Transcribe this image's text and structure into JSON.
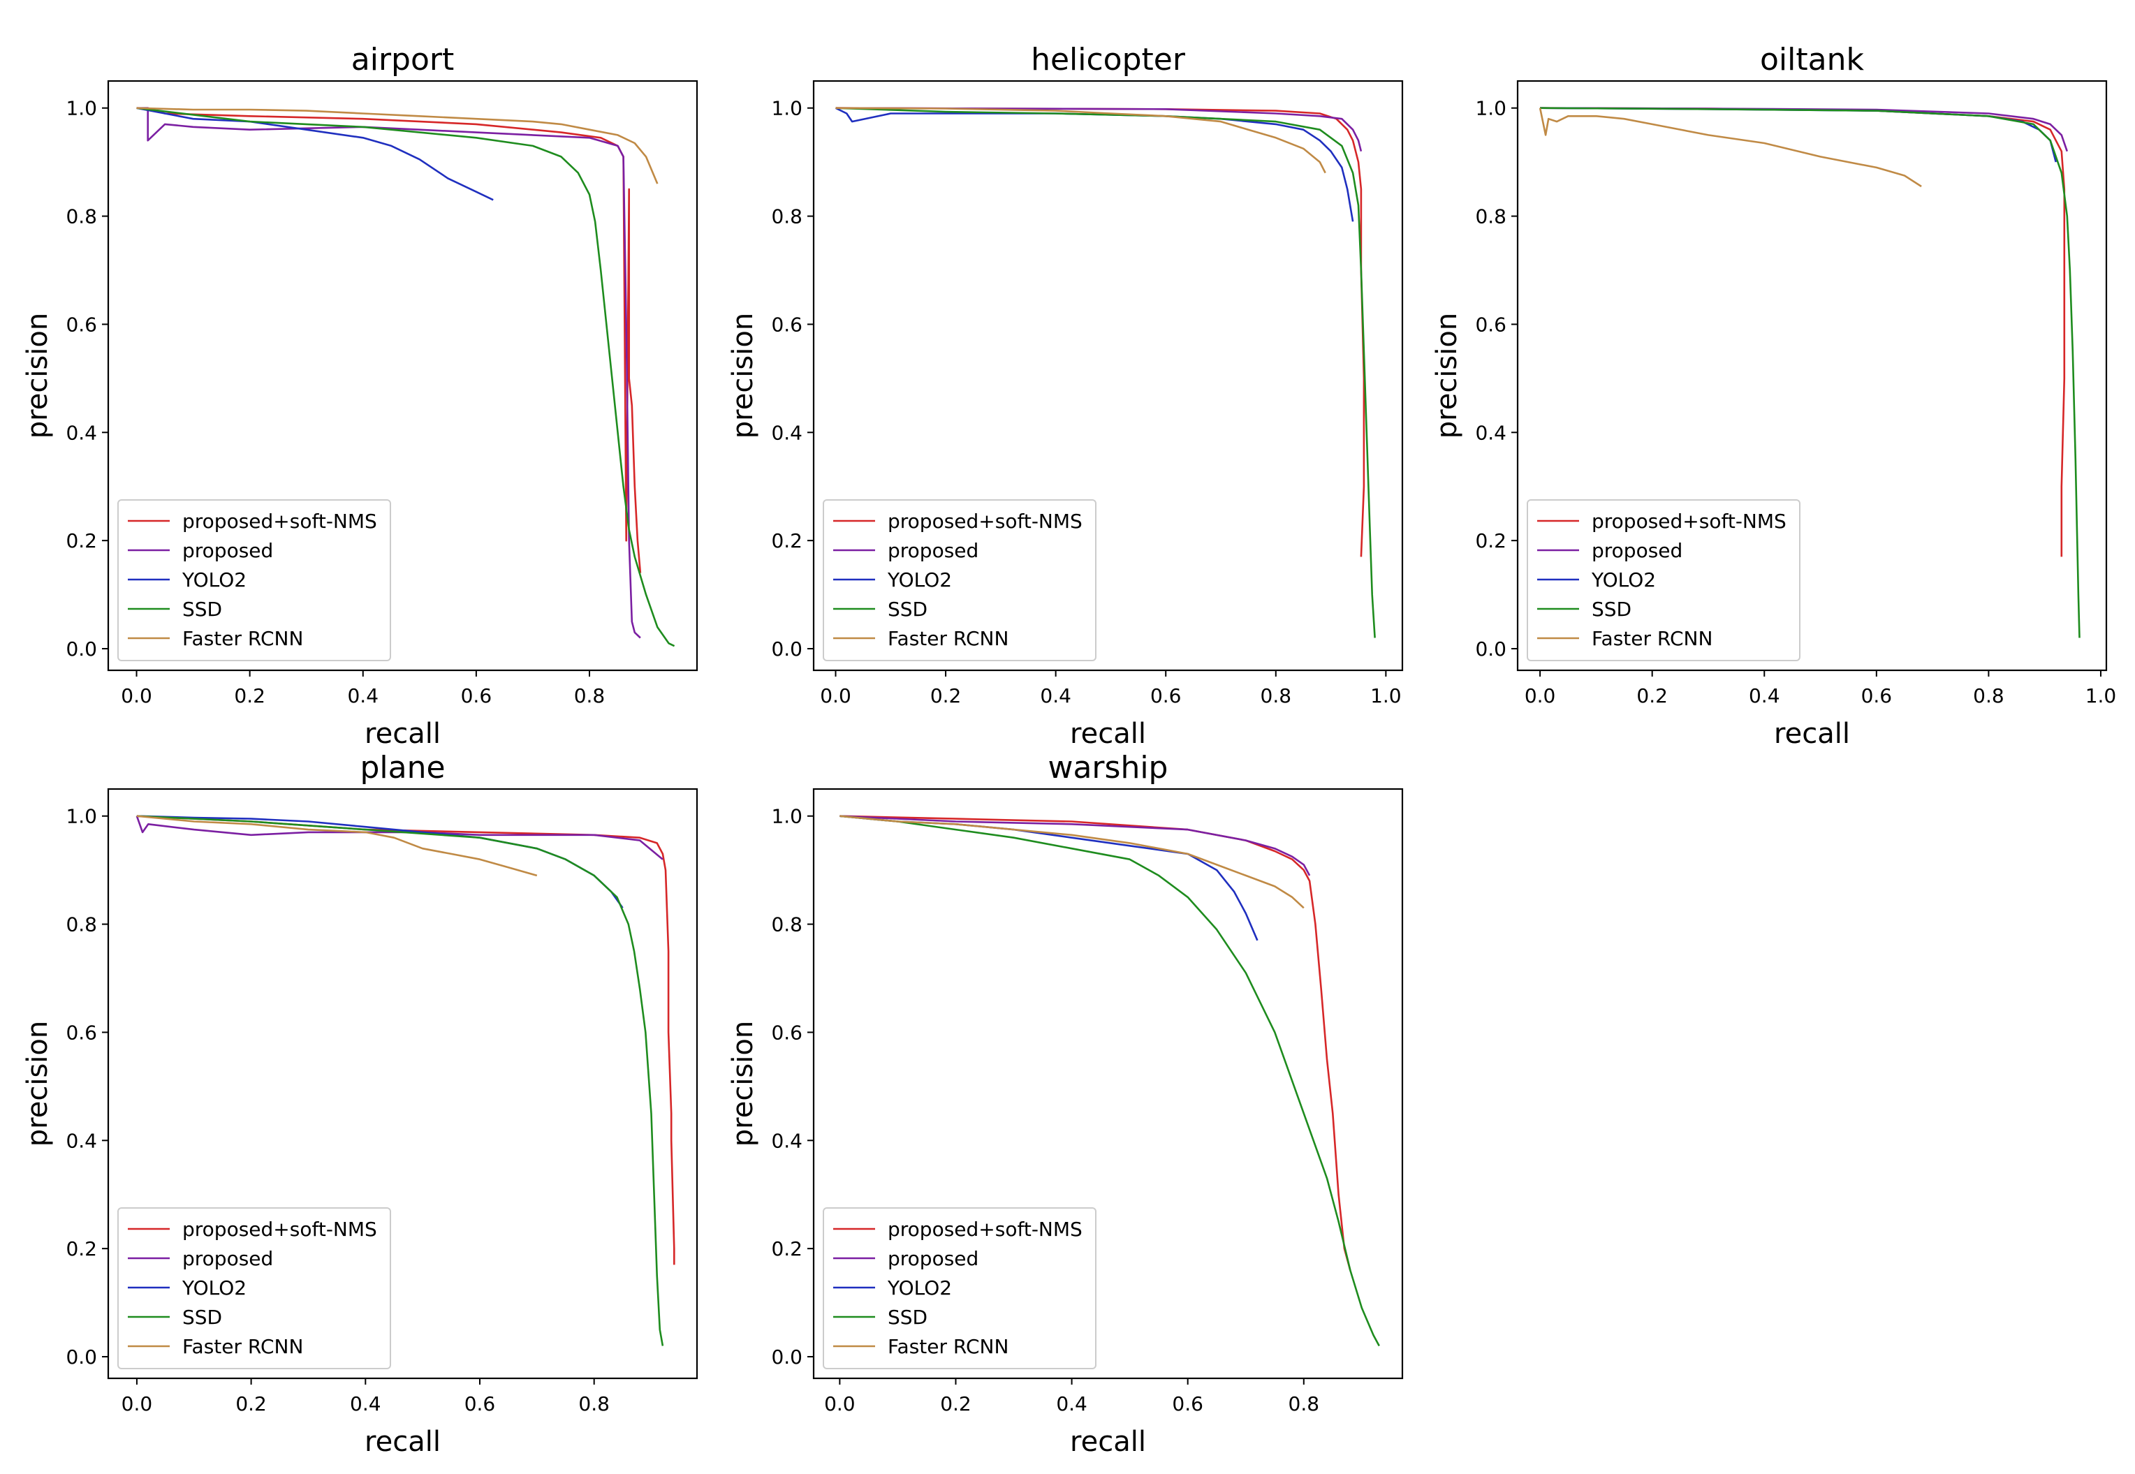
{
  "chart_data": [
    {
      "type": "line",
      "title": "airport",
      "xlabel": "recall",
      "ylabel": "precision",
      "xlim": [
        -0.05,
        0.99
      ],
      "ylim": [
        -0.04,
        1.05
      ],
      "xticks": [
        "0.0",
        "0.2",
        "0.4",
        "0.6",
        "0.8"
      ],
      "xtick_values": [
        0,
        0.2,
        0.4,
        0.6,
        0.8
      ],
      "yticks": [
        "0.0",
        "0.2",
        "0.4",
        "0.6",
        "0.8",
        "1.0"
      ],
      "ytick_values": [
        0,
        0.2,
        0.4,
        0.6,
        0.8,
        1.0
      ],
      "legend_position": "lower-left",
      "series": [
        {
          "name": "proposed+soft-NMS",
          "color": "#d62728",
          "x": [
            0.02,
            0.05,
            0.2,
            0.4,
            0.6,
            0.75,
            0.82,
            0.85,
            0.86,
            0.865,
            0.87,
            0.87,
            0.875,
            0.88,
            0.885,
            0.89
          ],
          "y": [
            1.0,
            0.99,
            0.985,
            0.98,
            0.97,
            0.955,
            0.945,
            0.93,
            0.91,
            0.2,
            0.85,
            0.5,
            0.45,
            0.3,
            0.2,
            0.14
          ]
        },
        {
          "name": "proposed",
          "color": "#7b1fa2",
          "x": [
            0.0,
            0.02,
            0.02,
            0.05,
            0.1,
            0.2,
            0.4,
            0.6,
            0.8,
            0.85,
            0.86,
            0.865,
            0.87,
            0.875,
            0.88,
            0.89
          ],
          "y": [
            1.0,
            1.0,
            0.94,
            0.97,
            0.965,
            0.96,
            0.965,
            0.955,
            0.945,
            0.93,
            0.91,
            0.6,
            0.2,
            0.05,
            0.03,
            0.02
          ]
        },
        {
          "name": "YOLO2",
          "color": "#1f2fbf",
          "x": [
            0.0,
            0.05,
            0.1,
            0.2,
            0.3,
            0.4,
            0.45,
            0.5,
            0.55,
            0.6,
            0.63
          ],
          "y": [
            1.0,
            0.99,
            0.98,
            0.975,
            0.96,
            0.945,
            0.93,
            0.905,
            0.87,
            0.845,
            0.83
          ]
        },
        {
          "name": "SSD",
          "color": "#1e8c1e",
          "x": [
            0.0,
            0.2,
            0.4,
            0.6,
            0.7,
            0.75,
            0.78,
            0.8,
            0.81,
            0.82,
            0.83,
            0.84,
            0.85,
            0.86,
            0.87,
            0.88,
            0.9,
            0.92,
            0.94,
            0.95
          ],
          "y": [
            1.0,
            0.975,
            0.965,
            0.945,
            0.93,
            0.91,
            0.88,
            0.84,
            0.79,
            0.7,
            0.6,
            0.5,
            0.4,
            0.3,
            0.22,
            0.17,
            0.1,
            0.04,
            0.01,
            0.005
          ]
        },
        {
          "name": "Faster RCNN",
          "color": "#c08a45",
          "x": [
            0.0,
            0.1,
            0.2,
            0.3,
            0.4,
            0.5,
            0.6,
            0.7,
            0.75,
            0.8,
            0.85,
            0.88,
            0.9,
            0.92
          ],
          "y": [
            1.0,
            0.997,
            0.997,
            0.995,
            0.99,
            0.985,
            0.98,
            0.975,
            0.97,
            0.96,
            0.95,
            0.935,
            0.91,
            0.86
          ]
        }
      ]
    },
    {
      "type": "line",
      "title": "helicopter",
      "xlabel": "recall",
      "ylabel": "precision",
      "xlim": [
        -0.04,
        1.03
      ],
      "ylim": [
        -0.04,
        1.05
      ],
      "xticks": [
        "0.0",
        "0.2",
        "0.4",
        "0.6",
        "0.8",
        "1.0"
      ],
      "xtick_values": [
        0,
        0.2,
        0.4,
        0.6,
        0.8,
        1.0
      ],
      "yticks": [
        "0.0",
        "0.2",
        "0.4",
        "0.6",
        "0.8",
        "1.0"
      ],
      "ytick_values": [
        0,
        0.2,
        0.4,
        0.6,
        0.8,
        1.0
      ],
      "legend_position": "lower-left",
      "series": [
        {
          "name": "proposed+soft-NMS",
          "color": "#d62728",
          "x": [
            0.0,
            0.3,
            0.6,
            0.8,
            0.88,
            0.91,
            0.93,
            0.94,
            0.95,
            0.955,
            0.955,
            0.96,
            0.96,
            0.955
          ],
          "y": [
            1.0,
            0.999,
            0.998,
            0.995,
            0.99,
            0.98,
            0.96,
            0.94,
            0.9,
            0.85,
            0.7,
            0.5,
            0.3,
            0.17
          ]
        },
        {
          "name": "proposed",
          "color": "#7b1fa2",
          "x": [
            0.0,
            0.3,
            0.6,
            0.8,
            0.88,
            0.92,
            0.94,
            0.95,
            0.955
          ],
          "y": [
            1.0,
            0.999,
            0.998,
            0.99,
            0.985,
            0.98,
            0.96,
            0.94,
            0.92
          ]
        },
        {
          "name": "YOLO2",
          "color": "#1f2fbf",
          "x": [
            0.0,
            0.02,
            0.03,
            0.1,
            0.2,
            0.4,
            0.6,
            0.7,
            0.8,
            0.85,
            0.88,
            0.9,
            0.92,
            0.93,
            0.94
          ],
          "y": [
            1.0,
            0.99,
            0.975,
            0.99,
            0.99,
            0.99,
            0.985,
            0.98,
            0.97,
            0.96,
            0.94,
            0.92,
            0.89,
            0.85,
            0.79
          ]
        },
        {
          "name": "SSD",
          "color": "#1e8c1e",
          "x": [
            0.0,
            0.2,
            0.4,
            0.6,
            0.8,
            0.88,
            0.92,
            0.94,
            0.95,
            0.955,
            0.96,
            0.965,
            0.97,
            0.975,
            0.98
          ],
          "y": [
            1.0,
            0.993,
            0.99,
            0.985,
            0.975,
            0.96,
            0.93,
            0.88,
            0.82,
            0.7,
            0.55,
            0.4,
            0.25,
            0.1,
            0.02
          ]
        },
        {
          "name": "Faster RCNN",
          "color": "#c08a45",
          "x": [
            0.0,
            0.2,
            0.4,
            0.5,
            0.6,
            0.7,
            0.75,
            0.8,
            0.85,
            0.88,
            0.89
          ],
          "y": [
            1.0,
            0.999,
            0.995,
            0.99,
            0.985,
            0.975,
            0.96,
            0.945,
            0.925,
            0.9,
            0.88
          ]
        }
      ]
    },
    {
      "type": "line",
      "title": "oiltank",
      "xlabel": "recall",
      "ylabel": "precision",
      "xlim": [
        -0.04,
        1.01
      ],
      "ylim": [
        -0.04,
        1.05
      ],
      "xticks": [
        "0.0",
        "0.2",
        "0.4",
        "0.6",
        "0.8",
        "1.0"
      ],
      "xtick_values": [
        0,
        0.2,
        0.4,
        0.6,
        0.8,
        1.0
      ],
      "yticks": [
        "0.0",
        "0.2",
        "0.4",
        "0.6",
        "0.8",
        "1.0"
      ],
      "ytick_values": [
        0,
        0.2,
        0.4,
        0.6,
        0.8,
        1.0
      ],
      "legend_position": "lower-left",
      "series": [
        {
          "name": "proposed+soft-NMS",
          "color": "#d62728",
          "x": [
            0.0,
            0.3,
            0.6,
            0.8,
            0.88,
            0.91,
            0.92,
            0.93,
            0.935,
            0.935,
            0.93,
            0.93
          ],
          "y": [
            1.0,
            0.999,
            0.995,
            0.985,
            0.975,
            0.96,
            0.94,
            0.92,
            0.85,
            0.5,
            0.3,
            0.17
          ]
        },
        {
          "name": "proposed",
          "color": "#7b1fa2",
          "x": [
            0.0,
            0.3,
            0.6,
            0.8,
            0.88,
            0.91,
            0.93,
            0.94
          ],
          "y": [
            1.0,
            0.999,
            0.997,
            0.99,
            0.98,
            0.97,
            0.95,
            0.92
          ]
        },
        {
          "name": "YOLO2",
          "color": "#1f2fbf",
          "x": [
            0.0,
            0.3,
            0.6,
            0.8,
            0.86,
            0.89,
            0.91,
            0.92
          ],
          "y": [
            1.0,
            0.998,
            0.995,
            0.985,
            0.975,
            0.96,
            0.94,
            0.9
          ]
        },
        {
          "name": "SSD",
          "color": "#1e8c1e",
          "x": [
            0.0,
            0.3,
            0.6,
            0.8,
            0.88,
            0.91,
            0.93,
            0.94,
            0.945,
            0.95,
            0.955,
            0.96,
            0.962
          ],
          "y": [
            1.0,
            0.998,
            0.995,
            0.985,
            0.97,
            0.94,
            0.88,
            0.8,
            0.7,
            0.55,
            0.35,
            0.1,
            0.02
          ]
        },
        {
          "name": "Faster RCNN",
          "color": "#c08a45",
          "x": [
            0.0,
            0.01,
            0.015,
            0.03,
            0.05,
            0.1,
            0.15,
            0.2,
            0.3,
            0.4,
            0.5,
            0.6,
            0.65,
            0.68
          ],
          "y": [
            1.0,
            0.95,
            0.98,
            0.975,
            0.985,
            0.985,
            0.98,
            0.97,
            0.95,
            0.935,
            0.91,
            0.89,
            0.875,
            0.855
          ]
        }
      ]
    },
    {
      "type": "line",
      "title": "plane",
      "xlabel": "recall",
      "ylabel": "precision",
      "xlim": [
        -0.05,
        0.98
      ],
      "ylim": [
        -0.04,
        1.05
      ],
      "xticks": [
        "0.0",
        "0.2",
        "0.4",
        "0.6",
        "0.8"
      ],
      "xtick_values": [
        0,
        0.2,
        0.4,
        0.6,
        0.8
      ],
      "yticks": [
        "0.0",
        "0.2",
        "0.4",
        "0.6",
        "0.8",
        "1.0"
      ],
      "ytick_values": [
        0,
        0.2,
        0.4,
        0.6,
        0.8,
        1.0
      ],
      "legend_position": "lower-left",
      "series": [
        {
          "name": "proposed+soft-NMS",
          "color": "#d62728",
          "x": [
            0.0,
            0.2,
            0.4,
            0.6,
            0.8,
            0.88,
            0.91,
            0.92,
            0.925,
            0.93,
            0.93,
            0.935,
            0.935,
            0.94,
            0.94
          ],
          "y": [
            1.0,
            0.99,
            0.975,
            0.97,
            0.965,
            0.96,
            0.95,
            0.93,
            0.9,
            0.75,
            0.6,
            0.45,
            0.4,
            0.2,
            0.17
          ]
        },
        {
          "name": "proposed",
          "color": "#7b1fa2",
          "x": [
            0.0,
            0.01,
            0.02,
            0.1,
            0.2,
            0.3,
            0.5,
            0.6,
            0.8,
            0.88,
            0.92
          ],
          "y": [
            1.0,
            0.97,
            0.985,
            0.975,
            0.965,
            0.97,
            0.97,
            0.965,
            0.965,
            0.955,
            0.92
          ]
        },
        {
          "name": "YOLO2",
          "color": "#1f2fbf",
          "x": [
            0.0,
            0.1,
            0.2,
            0.3,
            0.4,
            0.5,
            0.6,
            0.7,
            0.75,
            0.8,
            0.83,
            0.85
          ],
          "y": [
            1.0,
            0.997,
            0.995,
            0.99,
            0.98,
            0.97,
            0.96,
            0.94,
            0.92,
            0.89,
            0.86,
            0.83
          ]
        },
        {
          "name": "SSD",
          "color": "#1e8c1e",
          "x": [
            0.0,
            0.2,
            0.4,
            0.6,
            0.7,
            0.75,
            0.8,
            0.84,
            0.86,
            0.87,
            0.88,
            0.89,
            0.9,
            0.905,
            0.91,
            0.915,
            0.92
          ],
          "y": [
            1.0,
            0.99,
            0.975,
            0.96,
            0.94,
            0.92,
            0.89,
            0.85,
            0.8,
            0.75,
            0.68,
            0.6,
            0.45,
            0.3,
            0.15,
            0.05,
            0.02
          ]
        },
        {
          "name": "Faster RCNN",
          "color": "#c08a45",
          "x": [
            0.0,
            0.1,
            0.2,
            0.3,
            0.4,
            0.45,
            0.5,
            0.55,
            0.6,
            0.65,
            0.7
          ],
          "y": [
            1.0,
            0.99,
            0.985,
            0.975,
            0.97,
            0.96,
            0.94,
            0.93,
            0.92,
            0.905,
            0.89
          ]
        }
      ]
    },
    {
      "type": "line",
      "title": "warship",
      "xlabel": "recall",
      "ylabel": "precision",
      "xlim": [
        -0.045,
        0.97
      ],
      "ylim": [
        -0.04,
        1.05
      ],
      "xticks": [
        "0.0",
        "0.2",
        "0.4",
        "0.6",
        "0.8"
      ],
      "xtick_values": [
        0,
        0.2,
        0.4,
        0.6,
        0.8
      ],
      "yticks": [
        "0.0",
        "0.2",
        "0.4",
        "0.6",
        "0.8",
        "1.0"
      ],
      "ytick_values": [
        0,
        0.2,
        0.4,
        0.6,
        0.8,
        1.0
      ],
      "legend_position": "lower-left",
      "series": [
        {
          "name": "proposed+soft-NMS",
          "color": "#d62728",
          "x": [
            0.0,
            0.2,
            0.4,
            0.6,
            0.7,
            0.75,
            0.78,
            0.8,
            0.81,
            0.82,
            0.83,
            0.84,
            0.85,
            0.86,
            0.87,
            0.88
          ],
          "y": [
            1.0,
            0.995,
            0.99,
            0.975,
            0.955,
            0.935,
            0.92,
            0.9,
            0.88,
            0.8,
            0.68,
            0.55,
            0.45,
            0.3,
            0.2,
            0.16
          ]
        },
        {
          "name": "proposed",
          "color": "#7b1fa2",
          "x": [
            0.0,
            0.2,
            0.4,
            0.6,
            0.7,
            0.75,
            0.78,
            0.8,
            0.81
          ],
          "y": [
            1.0,
            0.99,
            0.985,
            0.975,
            0.955,
            0.94,
            0.925,
            0.91,
            0.89
          ]
        },
        {
          "name": "YOLO2",
          "color": "#1f2fbf",
          "x": [
            0.0,
            0.1,
            0.2,
            0.3,
            0.4,
            0.5,
            0.6,
            0.65,
            0.68,
            0.7,
            0.72
          ],
          "y": [
            1.0,
            0.99,
            0.985,
            0.975,
            0.96,
            0.945,
            0.93,
            0.9,
            0.86,
            0.82,
            0.77
          ]
        },
        {
          "name": "SSD",
          "color": "#1e8c1e",
          "x": [
            0.0,
            0.1,
            0.2,
            0.3,
            0.4,
            0.5,
            0.55,
            0.6,
            0.65,
            0.7,
            0.75,
            0.8,
            0.84,
            0.86,
            0.88,
            0.9,
            0.92,
            0.93
          ],
          "y": [
            1.0,
            0.99,
            0.975,
            0.96,
            0.94,
            0.92,
            0.89,
            0.85,
            0.79,
            0.71,
            0.6,
            0.45,
            0.33,
            0.25,
            0.16,
            0.09,
            0.04,
            0.02
          ]
        },
        {
          "name": "Faster RCNN",
          "color": "#c08a45",
          "x": [
            0.0,
            0.1,
            0.2,
            0.3,
            0.4,
            0.5,
            0.6,
            0.65,
            0.7,
            0.75,
            0.78,
            0.8
          ],
          "y": [
            1.0,
            0.99,
            0.985,
            0.975,
            0.965,
            0.95,
            0.93,
            0.91,
            0.89,
            0.87,
            0.85,
            0.83
          ]
        }
      ]
    }
  ]
}
